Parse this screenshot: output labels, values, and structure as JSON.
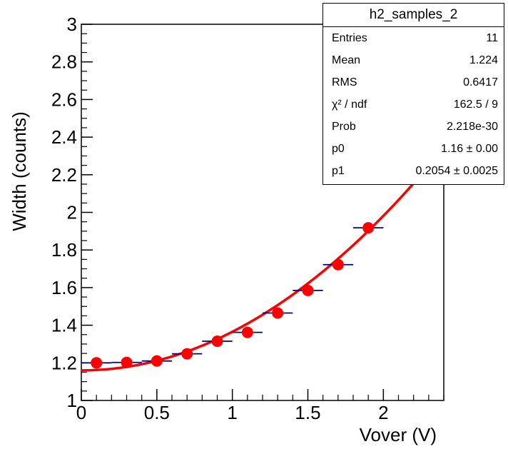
{
  "chart_data": {
    "type": "scatter",
    "xlabel": "Vover (V)",
    "ylabel": "Width (counts)",
    "xlim": [
      0,
      2.4
    ],
    "ylim": [
      1,
      3
    ],
    "x_ticks": [
      0,
      0.5,
      1,
      1.5,
      2
    ],
    "x_tick_labels": [
      "0",
      "0.5",
      "1",
      "1.5",
      "2"
    ],
    "y_ticks": [
      1,
      1.2,
      1.4,
      1.6,
      1.8,
      2,
      2.2,
      2.4,
      2.6,
      2.8,
      3
    ],
    "y_tick_labels": [
      "1",
      "1.2",
      "1.4",
      "1.6",
      "1.8",
      "2",
      "2.2",
      "2.4",
      "2.6",
      "2.8",
      "3"
    ],
    "series": [
      {
        "x": [
          0.1,
          0.3,
          0.5,
          0.7,
          0.9,
          1.1,
          1.3,
          1.5,
          1.7,
          1.9
        ],
        "y": [
          1.2,
          1.202,
          1.21,
          1.248,
          1.315,
          1.362,
          1.465,
          1.585,
          1.722,
          1.918
        ],
        "x_err": [
          0.1,
          0.1,
          0.1,
          0.1,
          0.1,
          0.1,
          0.1,
          0.1,
          0.1,
          0.1
        ],
        "marker_color": "#ff0000",
        "error_color": "#00008b"
      }
    ],
    "fit": {
      "color": "#ff0000",
      "p0": 1.16,
      "p1": 0.2054
    },
    "grid": false,
    "legend": "none"
  },
  "stats": {
    "title": "h2_samples_2",
    "rows": [
      {
        "label": "Entries",
        "value": "11"
      },
      {
        "label": "Mean",
        "value": "1.224"
      },
      {
        "label": "RMS",
        "value": "0.6417"
      },
      {
        "label": "χ² / ndf",
        "value": "162.5 / 9"
      },
      {
        "label": "Prob",
        "value": "2.218e-30"
      },
      {
        "label": "p0",
        "value": "1.16 ± 0.00"
      },
      {
        "label": "p1",
        "value": "0.2054 ± 0.0025"
      }
    ]
  }
}
